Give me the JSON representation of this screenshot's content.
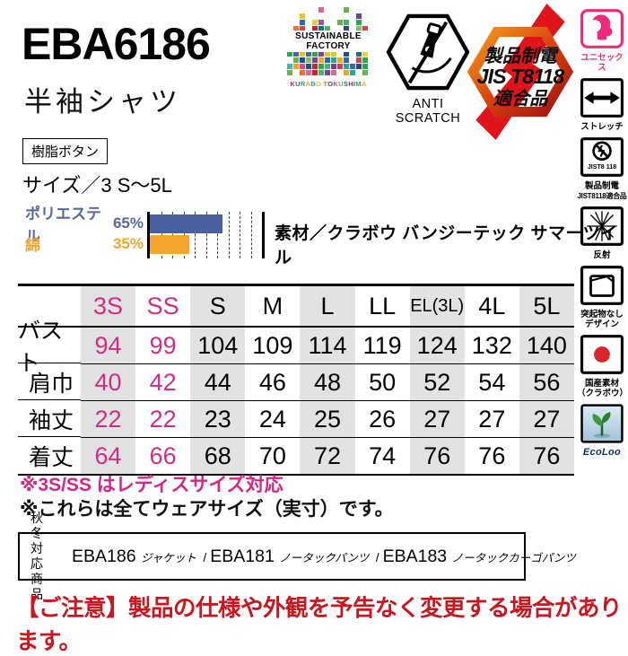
{
  "page": {
    "title_code": "EBA6186",
    "title_name": "半袖シャツ",
    "button_spec": "樹脂ボタン",
    "size_range": "サイズ／3 S～5L"
  },
  "logos": {
    "sustainable": {
      "title_line1": "SUSTAINABLE",
      "title_line2": "FACTORY",
      "footer": "KURABO TOKUSHIMA",
      "palette": [
        "#c1272d",
        "#2b66b1",
        "#2ea44f",
        "#f2a51f",
        "#1fa8a0",
        "#e4c51e",
        "#7c3f98",
        "#e2762c",
        "#274a8f",
        "#d44a86",
        "#67b44b",
        "#13747d"
      ]
    },
    "anti_scratch": {
      "label": "ANTI SCRATCH"
    },
    "jis_badge": {
      "line1": "製品制電",
      "line2": "JIS T8118",
      "line3": "適合品",
      "ring_color_start": "#f29a1c",
      "ring_color_end": "#9e0f0f",
      "bolt_color": "#e0151b"
    }
  },
  "material": {
    "heading": "素材／クラボウ バンジーテック サマーツイル"
  },
  "chart_data": {
    "type": "bar",
    "orientation": "horizontal",
    "categories": [
      "ポリエステル",
      "綿"
    ],
    "values": [
      65,
      35
    ],
    "value_labels": [
      "65%",
      "35%"
    ],
    "series_colors": [
      "#4a5fa0",
      "#f3a52e"
    ],
    "label_colors": [
      "#5a6897",
      "#f3a52e"
    ],
    "xlim": [
      0,
      100
    ],
    "grid_interval": 10,
    "grid_style": "dashed"
  },
  "size_table": {
    "columns": [
      "3S",
      "SS",
      "S",
      "M",
      "L",
      "LL",
      "EL(3L)",
      "4L",
      "5L"
    ],
    "highlight_columns": [
      "3S",
      "SS"
    ],
    "shaded_columns": [
      "3S",
      "S",
      "L",
      "EL(3L)",
      "5L"
    ],
    "highlight_color": "#cf2e84",
    "shade_color": "#e2e2e2",
    "rows": [
      {
        "label": "バスト",
        "values": [
          "94",
          "99",
          "104",
          "109",
          "114",
          "119",
          "124",
          "132",
          "140"
        ]
      },
      {
        "label": "肩巾",
        "values": [
          "40",
          "42",
          "44",
          "46",
          "48",
          "50",
          "52",
          "54",
          "56"
        ]
      },
      {
        "label": "袖丈",
        "values": [
          "22",
          "22",
          "23",
          "24",
          "25",
          "26",
          "27",
          "27",
          "27"
        ]
      },
      {
        "label": "着丈",
        "values": [
          "64",
          "66",
          "68",
          "70",
          "72",
          "74",
          "76",
          "76",
          "76"
        ]
      }
    ]
  },
  "notes": [
    {
      "text": "※3S/SS はレディスサイズ対応",
      "color": "#d6267f"
    },
    {
      "text": "※これらは全てウェアサイズ（実寸）です。",
      "color": "#111111"
    }
  ],
  "related_products": {
    "label_line1": "秋冬対応",
    "label_line2": "商品",
    "separator": "/",
    "items": [
      {
        "code": "EBA186",
        "name": "ジャケット"
      },
      {
        "code": "EBA181",
        "name": "ノータックパンツ"
      },
      {
        "code": "EBA183",
        "name": "ノータックカーゴパンツ"
      }
    ]
  },
  "notice": {
    "text": "【ご注意】製品の仕様や外観を予告なく変更する場合があります。",
    "color": "#c9161f"
  },
  "sidebar": {
    "items": [
      {
        "icon": "unisex-icon",
        "label_lines": [
          "ユニセックス"
        ],
        "label_color": "#ee2a7b"
      },
      {
        "icon": "stretch-icon",
        "label_lines": [
          "ストレッチ"
        ],
        "label_color": "#000000"
      },
      {
        "icon": "antistatic-icon",
        "icon_text": "JIST8 118",
        "label_lines": [
          "製品制電",
          "JIST8118適合品"
        ],
        "label_color": "#000000"
      },
      {
        "icon": "reflective-icon",
        "label_lines": [
          "反射"
        ],
        "label_color": "#000000"
      },
      {
        "icon": "no-protrusion-icon",
        "label_lines": [
          "突起物なし",
          "デザイン"
        ],
        "label_color": "#000000"
      },
      {
        "icon": "domestic-material-icon",
        "label_lines": [
          "国産素材",
          "（クラボウ）"
        ],
        "label_color": "#000000"
      },
      {
        "icon": "ecoloo-icon",
        "label_lines": [
          "EcoLoo"
        ],
        "label_color": "#0c2f5e",
        "label_style": "brand"
      }
    ]
  }
}
